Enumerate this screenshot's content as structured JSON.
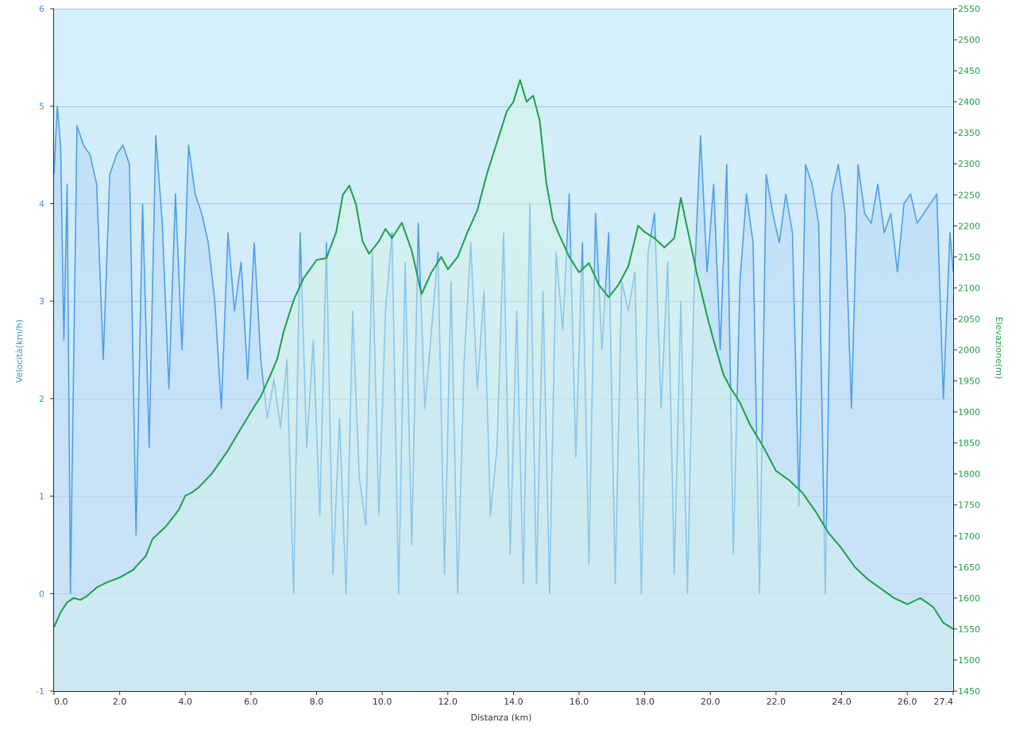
{
  "chart_data": {
    "type": "line",
    "xlabel": "Distanza  (km)",
    "ylabel_left": "Velocità(km/h)",
    "ylabel_right": "Elevazione(m)",
    "xlim": [
      0,
      27.4
    ],
    "ylim_left": [
      -1,
      6
    ],
    "ylim_right": [
      1450,
      2550
    ],
    "x_ticks": [
      "0.0",
      "2.0",
      "4.0",
      "6.0",
      "8.0",
      "10.0",
      "12.0",
      "14.0",
      "16.0",
      "18.0",
      "20.0",
      "22.0",
      "24.0",
      "26.0",
      "27.4"
    ],
    "y_left_ticks": [
      "-1",
      "0",
      "1",
      "2",
      "3",
      "4",
      "5",
      "6"
    ],
    "y_right_ticks": [
      "1450",
      "1500",
      "1550",
      "1600",
      "1650",
      "1700",
      "1750",
      "1800",
      "1850",
      "1900",
      "1950",
      "2000",
      "2050",
      "2100",
      "2150",
      "2200",
      "2250",
      "2300",
      "2350",
      "2400",
      "2450",
      "2500",
      "2550"
    ],
    "grid": true,
    "colors": {
      "speed": "#4d9fe6",
      "elevation": "#1aa047",
      "plot_bg_top": "#d2eef9",
      "plot_bg_bottom": "#cfe0f8"
    },
    "series": [
      {
        "name": "Velocità",
        "axis": "left",
        "x": [
          0.0,
          0.1,
          0.2,
          0.3,
          0.4,
          0.5,
          0.7,
          0.9,
          1.1,
          1.3,
          1.5,
          1.7,
          1.9,
          2.1,
          2.3,
          2.5,
          2.7,
          2.9,
          3.1,
          3.3,
          3.5,
          3.7,
          3.9,
          4.1,
          4.3,
          4.5,
          4.7,
          4.9,
          5.1,
          5.3,
          5.5,
          5.7,
          5.9,
          6.1,
          6.3,
          6.5,
          6.7,
          6.9,
          7.1,
          7.3,
          7.5,
          7.7,
          7.9,
          8.1,
          8.3,
          8.5,
          8.7,
          8.9,
          9.1,
          9.3,
          9.5,
          9.7,
          9.9,
          10.1,
          10.3,
          10.5,
          10.7,
          10.9,
          11.1,
          11.3,
          11.5,
          11.7,
          11.9,
          12.1,
          12.3,
          12.5,
          12.7,
          12.9,
          13.1,
          13.3,
          13.5,
          13.7,
          13.9,
          14.1,
          14.3,
          14.5,
          14.7,
          14.9,
          15.1,
          15.3,
          15.5,
          15.7,
          15.9,
          16.1,
          16.3,
          16.5,
          16.7,
          16.9,
          17.1,
          17.3,
          17.5,
          17.7,
          17.9,
          18.1,
          18.3,
          18.5,
          18.7,
          18.9,
          19.1,
          19.3,
          19.5,
          19.7,
          19.9,
          20.1,
          20.3,
          20.5,
          20.7,
          20.9,
          21.1,
          21.3,
          21.5,
          21.7,
          21.9,
          22.1,
          22.3,
          22.5,
          22.7,
          22.9,
          23.1,
          23.3,
          23.5,
          23.7,
          23.9,
          24.1,
          24.3,
          24.5,
          24.7,
          24.9,
          25.1,
          25.3,
          25.5,
          25.7,
          25.9,
          26.1,
          26.3,
          26.5,
          26.7,
          26.9,
          27.1,
          27.3,
          27.4
        ],
        "values": [
          4.3,
          5.0,
          4.6,
          2.6,
          4.2,
          0.0,
          4.8,
          4.6,
          4.5,
          4.2,
          2.4,
          4.3,
          4.5,
          4.6,
          4.4,
          0.6,
          4.0,
          1.5,
          4.7,
          3.8,
          2.1,
          4.1,
          2.5,
          4.6,
          4.1,
          3.9,
          3.6,
          3.0,
          1.9,
          3.7,
          2.9,
          3.4,
          2.2,
          3.6,
          2.4,
          1.8,
          2.2,
          1.7,
          2.4,
          0.0,
          3.7,
          1.5,
          2.6,
          0.8,
          3.6,
          0.2,
          1.8,
          0.0,
          2.9,
          1.2,
          0.7,
          3.5,
          0.8,
          2.9,
          3.7,
          0.0,
          3.4,
          0.5,
          3.8,
          1.9,
          2.7,
          3.5,
          0.2,
          3.2,
          0.0,
          2.4,
          3.6,
          2.1,
          3.1,
          0.8,
          1.5,
          3.7,
          0.4,
          2.9,
          0.1,
          4.0,
          0.1,
          3.1,
          0.0,
          3.5,
          2.7,
          4.1,
          1.4,
          3.6,
          0.3,
          3.9,
          2.5,
          3.7,
          0.1,
          3.2,
          2.9,
          3.3,
          0.0,
          3.5,
          3.9,
          1.9,
          3.4,
          0.2,
          3.0,
          0.0,
          3.1,
          4.7,
          3.3,
          4.2,
          2.5,
          4.4,
          0.4,
          3.2,
          4.1,
          3.6,
          0.0,
          4.3,
          3.9,
          3.6,
          4.1,
          3.7,
          0.9,
          4.4,
          4.2,
          3.8,
          0.0,
          4.1,
          4.4,
          3.9,
          1.9,
          4.4,
          3.9,
          3.8,
          4.2,
          3.7,
          3.9,
          3.3,
          4.0,
          4.1,
          3.8,
          3.9,
          4.0,
          4.1,
          2.0,
          3.7,
          3.3
        ]
      },
      {
        "name": "Elevazione",
        "axis": "right",
        "x": [
          0.0,
          0.2,
          0.4,
          0.6,
          0.8,
          1.0,
          1.3,
          1.6,
          2.0,
          2.4,
          2.8,
          3.0,
          3.4,
          3.8,
          4.0,
          4.2,
          4.4,
          4.8,
          5.0,
          5.3,
          5.6,
          6.0,
          6.3,
          6.6,
          6.8,
          7.0,
          7.3,
          7.6,
          8.0,
          8.3,
          8.6,
          8.8,
          9.0,
          9.2,
          9.4,
          9.6,
          9.9,
          10.1,
          10.3,
          10.6,
          10.9,
          11.2,
          11.5,
          11.8,
          12.0,
          12.3,
          12.6,
          12.9,
          13.2,
          13.5,
          13.8,
          14.0,
          14.2,
          14.4,
          14.6,
          14.8,
          15.0,
          15.2,
          15.4,
          15.7,
          16.0,
          16.3,
          16.6,
          16.9,
          17.2,
          17.5,
          17.8,
          18.0,
          18.3,
          18.6,
          18.9,
          19.1,
          19.4,
          19.6,
          19.9,
          20.1,
          20.4,
          20.6,
          20.9,
          21.2,
          21.6,
          22.0,
          22.4,
          22.8,
          23.2,
          23.6,
          24.0,
          24.4,
          24.8,
          25.2,
          25.6,
          26.0,
          26.4,
          26.8,
          27.1,
          27.4
        ],
        "values": [
          1553,
          1577,
          1593,
          1600,
          1597,
          1603,
          1617,
          1625,
          1633,
          1645,
          1668,
          1695,
          1715,
          1742,
          1765,
          1770,
          1778,
          1800,
          1815,
          1838,
          1865,
          1900,
          1925,
          1960,
          1985,
          2030,
          2080,
          2115,
          2145,
          2148,
          2190,
          2250,
          2265,
          2235,
          2175,
          2155,
          2175,
          2195,
          2180,
          2205,
          2160,
          2090,
          2125,
          2150,
          2130,
          2150,
          2190,
          2225,
          2285,
          2335,
          2385,
          2400,
          2435,
          2400,
          2410,
          2370,
          2270,
          2210,
          2185,
          2150,
          2125,
          2140,
          2105,
          2085,
          2105,
          2135,
          2200,
          2190,
          2180,
          2165,
          2180,
          2245,
          2170,
          2120,
          2055,
          2015,
          1960,
          1940,
          1915,
          1880,
          1845,
          1805,
          1790,
          1770,
          1740,
          1705,
          1680,
          1650,
          1630,
          1615,
          1600,
          1590,
          1600,
          1585,
          1560,
          1550
        ]
      }
    ]
  }
}
